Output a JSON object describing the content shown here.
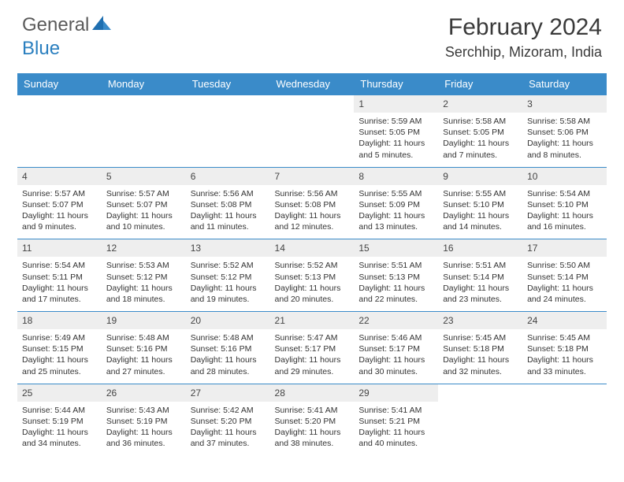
{
  "logo": {
    "general": "General",
    "blue": "Blue"
  },
  "title": "February 2024",
  "location": "Serchhip, Mizoram, India",
  "header_bg": "#3a8bc9",
  "daynum_bg": "#eeeeee",
  "dow": [
    "Sunday",
    "Monday",
    "Tuesday",
    "Wednesday",
    "Thursday",
    "Friday",
    "Saturday"
  ],
  "weeks": [
    [
      {
        "n": "",
        "sr": "",
        "ss": "",
        "dl": ""
      },
      {
        "n": "",
        "sr": "",
        "ss": "",
        "dl": ""
      },
      {
        "n": "",
        "sr": "",
        "ss": "",
        "dl": ""
      },
      {
        "n": "",
        "sr": "",
        "ss": "",
        "dl": ""
      },
      {
        "n": "1",
        "sr": "Sunrise: 5:59 AM",
        "ss": "Sunset: 5:05 PM",
        "dl": "Daylight: 11 hours and 5 minutes."
      },
      {
        "n": "2",
        "sr": "Sunrise: 5:58 AM",
        "ss": "Sunset: 5:05 PM",
        "dl": "Daylight: 11 hours and 7 minutes."
      },
      {
        "n": "3",
        "sr": "Sunrise: 5:58 AM",
        "ss": "Sunset: 5:06 PM",
        "dl": "Daylight: 11 hours and 8 minutes."
      }
    ],
    [
      {
        "n": "4",
        "sr": "Sunrise: 5:57 AM",
        "ss": "Sunset: 5:07 PM",
        "dl": "Daylight: 11 hours and 9 minutes."
      },
      {
        "n": "5",
        "sr": "Sunrise: 5:57 AM",
        "ss": "Sunset: 5:07 PM",
        "dl": "Daylight: 11 hours and 10 minutes."
      },
      {
        "n": "6",
        "sr": "Sunrise: 5:56 AM",
        "ss": "Sunset: 5:08 PM",
        "dl": "Daylight: 11 hours and 11 minutes."
      },
      {
        "n": "7",
        "sr": "Sunrise: 5:56 AM",
        "ss": "Sunset: 5:08 PM",
        "dl": "Daylight: 11 hours and 12 minutes."
      },
      {
        "n": "8",
        "sr": "Sunrise: 5:55 AM",
        "ss": "Sunset: 5:09 PM",
        "dl": "Daylight: 11 hours and 13 minutes."
      },
      {
        "n": "9",
        "sr": "Sunrise: 5:55 AM",
        "ss": "Sunset: 5:10 PM",
        "dl": "Daylight: 11 hours and 14 minutes."
      },
      {
        "n": "10",
        "sr": "Sunrise: 5:54 AM",
        "ss": "Sunset: 5:10 PM",
        "dl": "Daylight: 11 hours and 16 minutes."
      }
    ],
    [
      {
        "n": "11",
        "sr": "Sunrise: 5:54 AM",
        "ss": "Sunset: 5:11 PM",
        "dl": "Daylight: 11 hours and 17 minutes."
      },
      {
        "n": "12",
        "sr": "Sunrise: 5:53 AM",
        "ss": "Sunset: 5:12 PM",
        "dl": "Daylight: 11 hours and 18 minutes."
      },
      {
        "n": "13",
        "sr": "Sunrise: 5:52 AM",
        "ss": "Sunset: 5:12 PM",
        "dl": "Daylight: 11 hours and 19 minutes."
      },
      {
        "n": "14",
        "sr": "Sunrise: 5:52 AM",
        "ss": "Sunset: 5:13 PM",
        "dl": "Daylight: 11 hours and 20 minutes."
      },
      {
        "n": "15",
        "sr": "Sunrise: 5:51 AM",
        "ss": "Sunset: 5:13 PM",
        "dl": "Daylight: 11 hours and 22 minutes."
      },
      {
        "n": "16",
        "sr": "Sunrise: 5:51 AM",
        "ss": "Sunset: 5:14 PM",
        "dl": "Daylight: 11 hours and 23 minutes."
      },
      {
        "n": "17",
        "sr": "Sunrise: 5:50 AM",
        "ss": "Sunset: 5:14 PM",
        "dl": "Daylight: 11 hours and 24 minutes."
      }
    ],
    [
      {
        "n": "18",
        "sr": "Sunrise: 5:49 AM",
        "ss": "Sunset: 5:15 PM",
        "dl": "Daylight: 11 hours and 25 minutes."
      },
      {
        "n": "19",
        "sr": "Sunrise: 5:48 AM",
        "ss": "Sunset: 5:16 PM",
        "dl": "Daylight: 11 hours and 27 minutes."
      },
      {
        "n": "20",
        "sr": "Sunrise: 5:48 AM",
        "ss": "Sunset: 5:16 PM",
        "dl": "Daylight: 11 hours and 28 minutes."
      },
      {
        "n": "21",
        "sr": "Sunrise: 5:47 AM",
        "ss": "Sunset: 5:17 PM",
        "dl": "Daylight: 11 hours and 29 minutes."
      },
      {
        "n": "22",
        "sr": "Sunrise: 5:46 AM",
        "ss": "Sunset: 5:17 PM",
        "dl": "Daylight: 11 hours and 30 minutes."
      },
      {
        "n": "23",
        "sr": "Sunrise: 5:45 AM",
        "ss": "Sunset: 5:18 PM",
        "dl": "Daylight: 11 hours and 32 minutes."
      },
      {
        "n": "24",
        "sr": "Sunrise: 5:45 AM",
        "ss": "Sunset: 5:18 PM",
        "dl": "Daylight: 11 hours and 33 minutes."
      }
    ],
    [
      {
        "n": "25",
        "sr": "Sunrise: 5:44 AM",
        "ss": "Sunset: 5:19 PM",
        "dl": "Daylight: 11 hours and 34 minutes."
      },
      {
        "n": "26",
        "sr": "Sunrise: 5:43 AM",
        "ss": "Sunset: 5:19 PM",
        "dl": "Daylight: 11 hours and 36 minutes."
      },
      {
        "n": "27",
        "sr": "Sunrise: 5:42 AM",
        "ss": "Sunset: 5:20 PM",
        "dl": "Daylight: 11 hours and 37 minutes."
      },
      {
        "n": "28",
        "sr": "Sunrise: 5:41 AM",
        "ss": "Sunset: 5:20 PM",
        "dl": "Daylight: 11 hours and 38 minutes."
      },
      {
        "n": "29",
        "sr": "Sunrise: 5:41 AM",
        "ss": "Sunset: 5:21 PM",
        "dl": "Daylight: 11 hours and 40 minutes."
      },
      {
        "n": "",
        "sr": "",
        "ss": "",
        "dl": ""
      },
      {
        "n": "",
        "sr": "",
        "ss": "",
        "dl": ""
      }
    ]
  ]
}
